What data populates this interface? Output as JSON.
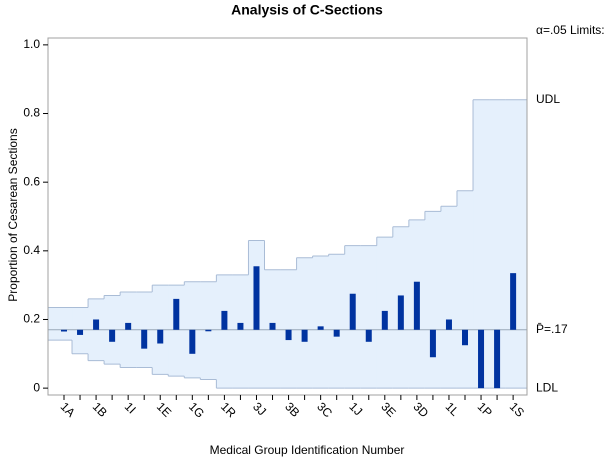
{
  "chart_data": {
    "type": "anom",
    "title": "Analysis of C-Sections",
    "x_label": "Medical Group Identification Number",
    "y_label": "Proportion of Cesarean Sections",
    "limits_label": "α=.05 Limits:",
    "udl_label": "UDL",
    "ldl_label": "LDL",
    "center": 0.17,
    "center_label": "P̄=.17",
    "categories": [
      "1A",
      null,
      "1B",
      null,
      "1I",
      null,
      "1E",
      null,
      "1G",
      null,
      "1R",
      null,
      "3J",
      null,
      "3B",
      null,
      "3C",
      null,
      "1J",
      null,
      "3E",
      null,
      "3D",
      null,
      "1L",
      null,
      "1P",
      null,
      "1S"
    ],
    "values": [
      0.165,
      0.155,
      0.2,
      0.135,
      0.19,
      0.115,
      0.13,
      0.26,
      0.1,
      0.17,
      0.225,
      0.19,
      0.355,
      0.19,
      0.14,
      0.135,
      0.18,
      0.15,
      0.275,
      0.135,
      0.225,
      0.27,
      0.31,
      0.09,
      0.2,
      0.125,
      0.0,
      0.0,
      0.335
    ],
    "udl": [
      0.235,
      0.235,
      0.26,
      0.27,
      0.28,
      0.28,
      0.3,
      0.3,
      0.31,
      0.31,
      0.33,
      0.33,
      0.43,
      0.345,
      0.345,
      0.38,
      0.385,
      0.39,
      0.415,
      0.415,
      0.44,
      0.47,
      0.49,
      0.515,
      0.53,
      0.575,
      0.84,
      0.84,
      0.84
    ],
    "ldl": [
      0.14,
      0.1,
      0.08,
      0.07,
      0.06,
      0.06,
      0.04,
      0.035,
      0.03,
      0.025,
      0,
      0,
      0,
      0,
      0,
      0,
      0,
      0,
      0,
      0,
      0,
      0,
      0,
      0,
      0,
      0,
      0,
      0,
      0
    ],
    "color": "#0033a0",
    "band_color": "#e5f0fc",
    "limit_color": "#a9bcd6",
    "ylim": [
      -0.02,
      1.02
    ],
    "yticks": [
      0,
      0.2,
      0.4,
      0.6,
      0.8,
      {
        "value": 1.0,
        "label": "1.0"
      }
    ]
  }
}
